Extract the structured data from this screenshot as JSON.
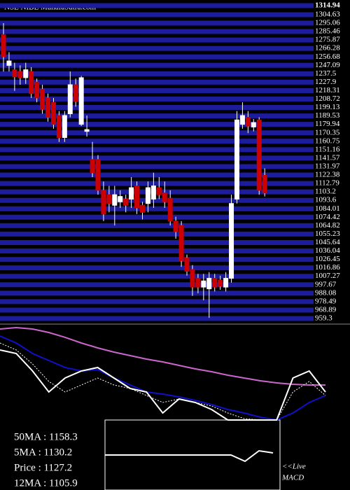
{
  "chart_data": [
    {
      "type": "candlestick",
      "title": "NSE NIBE MunafaSutra.com",
      "ylim": [
        959.3,
        1314.94
      ],
      "yticks": [
        1314.94,
        1304.63,
        1295.06,
        1285.46,
        1275.87,
        1266.28,
        1256.68,
        1247.09,
        1237.5,
        1227.9,
        1218.31,
        1208.72,
        1199.13,
        1189.53,
        1179.94,
        1170.35,
        1160.75,
        1151.16,
        1141.57,
        1131.97,
        1122.38,
        1112.79,
        1103.2,
        1093.6,
        1084.01,
        1074.42,
        1064.82,
        1055.23,
        1045.64,
        1036.04,
        1026.45,
        1016.86,
        1007.27,
        997.67,
        988.08,
        978.49,
        968.89,
        959.3
      ],
      "grid": true,
      "grid_color": "#1c1c9c",
      "up_color": "#ffffff",
      "down_color": "#cc0000",
      "open": [
        1282,
        1247,
        1242,
        1240,
        1233,
        1240,
        1228,
        1220,
        1210,
        1205,
        1190,
        1165,
        1192,
        1225,
        1180,
        1172,
        1140,
        1140,
        1105,
        1100,
        1088,
        1092,
        1095,
        1095,
        1110,
        1088,
        1090,
        1095,
        1108,
        1102,
        1096,
        1070,
        1065,
        1028,
        1015,
        1005,
        995,
        993,
        1005,
        1003,
        995,
        1005,
        1095,
        1180,
        1188,
        1177,
        1185,
        1122
      ],
      "high": [
        1295,
        1262,
        1250,
        1247,
        1250,
        1245,
        1232,
        1225,
        1215,
        1210,
        1195,
        1195,
        1240,
        1232,
        1235,
        1190,
        1160,
        1145,
        1115,
        1110,
        1110,
        1105,
        1100,
        1120,
        1115,
        1092,
        1115,
        1125,
        1120,
        1115,
        1105,
        1075,
        1070,
        1032,
        1020,
        1010,
        1010,
        1012,
        1010,
        1008,
        1012,
        1100,
        1195,
        1205,
        1195,
        1186,
        1188,
        1130
      ],
      "low": [
        1240,
        1240,
        1218,
        1225,
        1226,
        1210,
        1205,
        1192,
        1183,
        1175,
        1160,
        1160,
        1188,
        1200,
        1178,
        1166,
        1120,
        1100,
        1070,
        1080,
        1065,
        1085,
        1080,
        1085,
        1078,
        1072,
        1080,
        1085,
        1095,
        1085,
        1065,
        1050,
        1018,
        1008,
        985,
        988,
        980,
        960,
        990,
        992,
        990,
        1000,
        1090,
        1175,
        1170,
        1172,
        1100,
        1098
      ],
      "close": [
        1257,
        1252,
        1234,
        1233,
        1242,
        1215,
        1210,
        1197,
        1188,
        1180,
        1165,
        1190,
        1225,
        1206,
        1233,
        1174,
        1125,
        1105,
        1078,
        1090,
        1100,
        1098,
        1088,
        1108,
        1085,
        1080,
        1108,
        1110,
        1100,
        1092,
        1070,
        1058,
        1025,
        1013,
        995,
        995,
        1002,
        1005,
        995,
        996,
        1005,
        1090,
        1185,
        1190,
        1178,
        1182,
        1105,
        1102
      ]
    },
    {
      "type": "line",
      "xlim": [
        0,
        20
      ],
      "x": [
        0,
        1,
        2,
        3,
        4,
        5,
        6,
        7,
        8,
        9,
        10,
        11,
        12,
        13,
        14,
        15,
        16,
        17,
        18,
        19,
        20
      ],
      "ylim": [
        1000,
        1330
      ],
      "series": [
        {
          "color": "#cc66cc",
          "dashed": false,
          "values": [
            1317.8,
            1322.7,
            1317.8,
            1305.6,
            1288.5,
            1268.9,
            1251.8,
            1237.1,
            1224.9,
            1212.7,
            1202.9,
            1190.7,
            1178.5,
            1168.7,
            1156.5,
            1146.7,
            1136.9,
            1129.6,
            1124.7,
            1122.3,
            1122.3
          ]
        },
        {
          "color": "#1010cc",
          "dashed": false,
          "values": [
            1293.3,
            1268.9,
            1232.2,
            1207.8,
            1183.4,
            1171.1,
            1176,
            1146.7,
            1122.3,
            1097.8,
            1090.5,
            1080.7,
            1068.5,
            1053.8,
            1036.7,
            1024.5,
            1009.8,
            1000,
            1024.5,
            1061.2,
            1085.6
          ]
        },
        {
          "color": "#ffffff",
          "dashed": false,
          "values": [
            1244.5,
            1232.2,
            1171.1,
            1097.8,
            1146.7,
            1171.1,
            1183.4,
            1146.7,
            1110,
            1097.8,
            1024.5,
            1073.4,
            1061.2,
            1036.7,
            1000,
            1000,
            1000,
            1000,
            1146.7,
            1171.1,
            1097.8
          ]
        },
        {
          "color": "#ffffff",
          "dashed": true,
          "values": [
            1268.9,
            1244.5,
            1195.6,
            1134.5,
            1097.8,
            1122.3,
            1146.7,
            1122.3,
            1110,
            1085.6,
            1061.2,
            1073.4,
            1061.2,
            1049,
            1024.5,
            1004.9,
            1000,
            1000,
            1097.8,
            1134.5,
            1085.6
          ]
        }
      ],
      "legend_texts": [
        "50MA : 1158.3",
        "5MA : 1130.2",
        "Price : 1127.2",
        "12MA : 1105.9"
      ]
    },
    {
      "type": "line",
      "xlim": [
        0,
        12
      ],
      "x": [
        0,
        1,
        2,
        3,
        4,
        5,
        6,
        7,
        8,
        9,
        10,
        11,
        12
      ],
      "ylim": [
        -3,
        3
      ],
      "series": [
        {
          "color": "#ffffff",
          "dashed": false,
          "values": [
            0,
            0,
            0,
            0,
            0,
            0,
            0,
            0,
            0,
            0,
            -0.6,
            0.4,
            0.2
          ]
        }
      ],
      "annotation": [
        "<<Live",
        "MACD"
      ]
    }
  ]
}
